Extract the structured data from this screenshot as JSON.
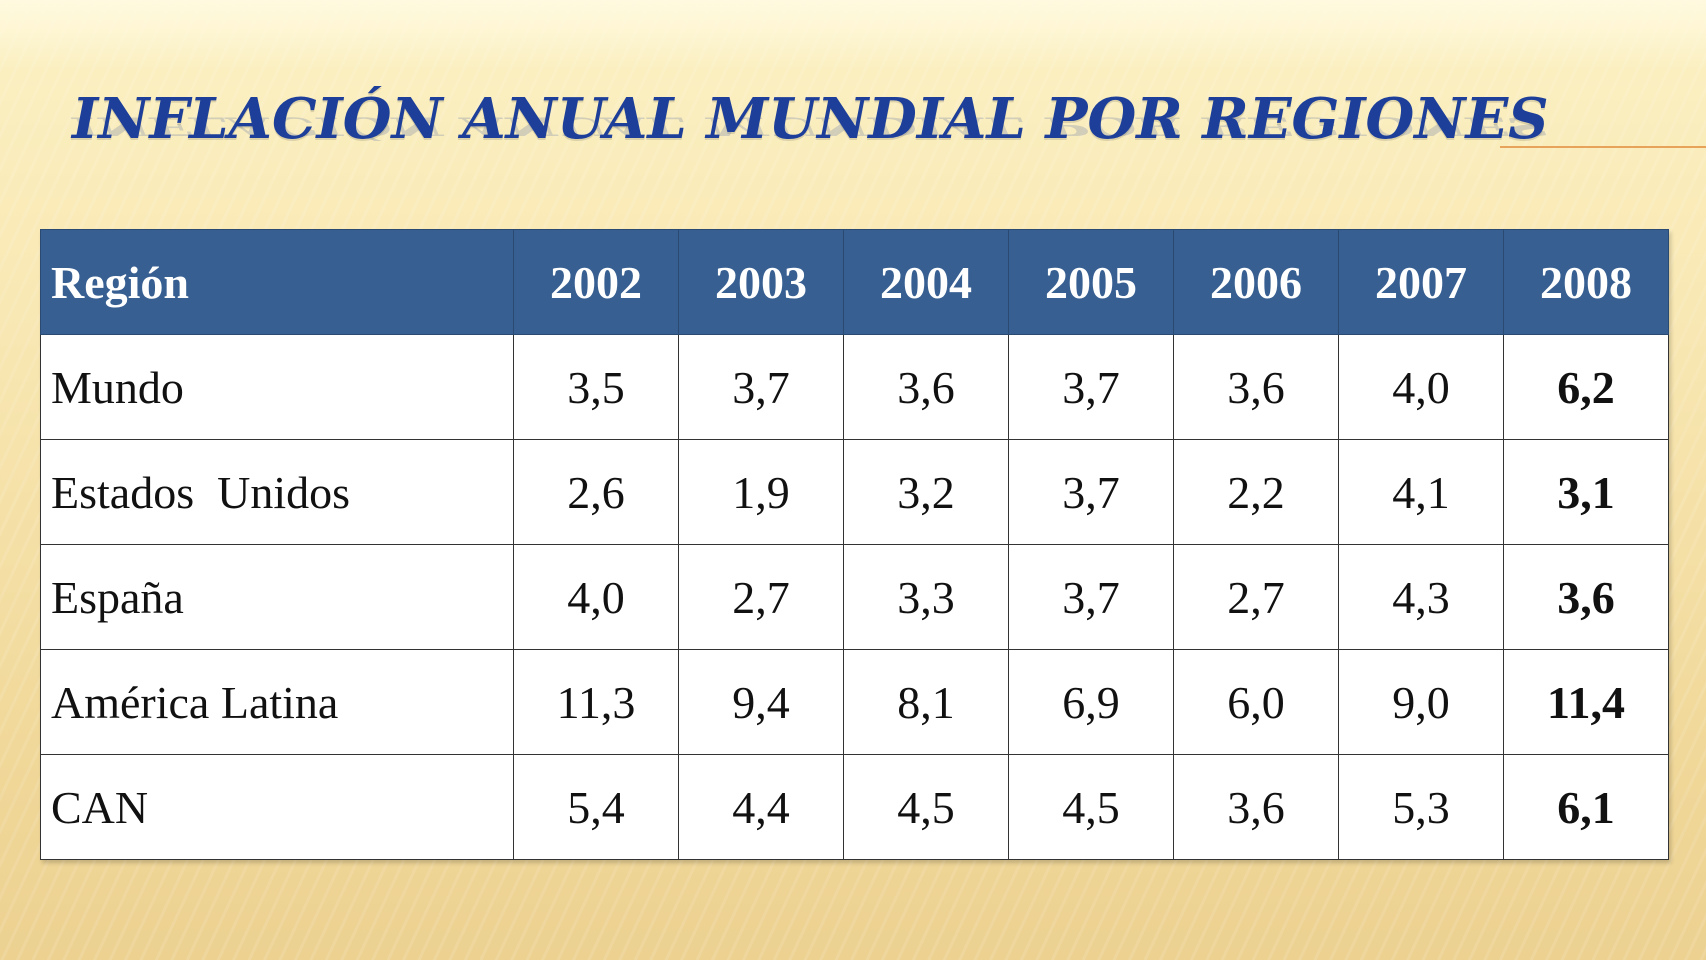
{
  "slide": {
    "title": "Inflación anual mundial por regiones",
    "colors": {
      "title": "#1d3f9a",
      "header_bg": "#375f91",
      "header_text": "#ffffff",
      "accent_rule": "#e8a35a"
    }
  },
  "table": {
    "headers": [
      "Región",
      "2002",
      "2003",
      "2004",
      "2005",
      "2006",
      "2007",
      "2008"
    ],
    "rows": [
      {
        "region": "Mundo",
        "values": [
          "3,5",
          "3,7",
          "3,6",
          "3,7",
          "3,6",
          "4,0",
          "6,2"
        ]
      },
      {
        "region": "Estados  Unidos",
        "values": [
          "2,6",
          "1,9",
          "3,2",
          "3,7",
          "2,2",
          "4,1",
          "3,1"
        ]
      },
      {
        "region": "España",
        "values": [
          "4,0",
          "2,7",
          "3,3",
          "3,7",
          "2,7",
          "4,3",
          "3,6"
        ]
      },
      {
        "region": "América Latina",
        "values": [
          "11,3",
          "9,4",
          "8,1",
          "6,9",
          "6,0",
          "9,0",
          "11,4"
        ]
      },
      {
        "region": "CAN",
        "values": [
          "5,4",
          "4,4",
          "4,5",
          "4,5",
          "3,6",
          "5,3",
          "6,1"
        ]
      }
    ],
    "bold_column": "2008"
  }
}
